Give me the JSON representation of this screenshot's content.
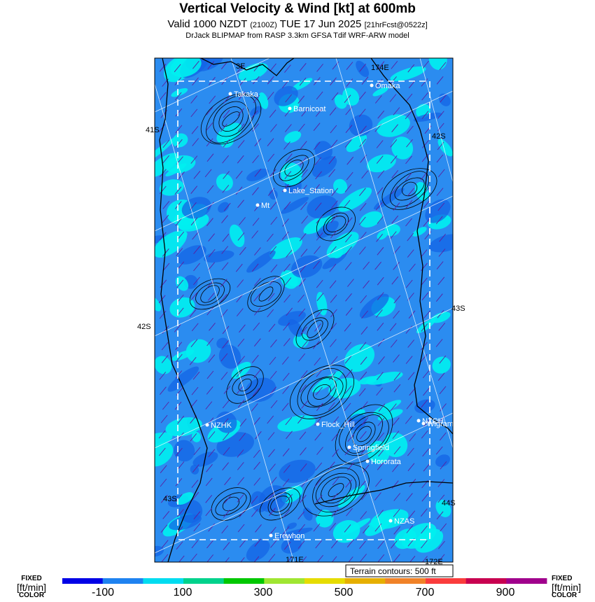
{
  "header": {
    "title": "Vertical Velocity & Wind [kt] at 600mb",
    "valid_prefix": "Valid 1000 NZDT",
    "valid_utc": "(2100Z)",
    "valid_date": "TUE 17 Jun 2025",
    "forecast": "[21hrFcst@0522z]",
    "subtitle": "DrJack BLIPMAP from RASP 3.3km GFSA Tdif WRF-ARW model"
  },
  "map": {
    "background_color": "#2b8cf0",
    "updraft_color": "#00f0f0",
    "downdraft_color": "#1464e6",
    "terrain_note": "Terrain contours: 500 ft",
    "grid_labels": {
      "lon_top_left": "3E",
      "lon_top_right": "174E",
      "lon_bottom_left": "171E",
      "lon_bottom_right": "172E",
      "lat_left_1": "41S",
      "lat_left_2": "42S",
      "lat_left_3": "43S",
      "lat_right_1": "42S",
      "lat_right_2": "43S",
      "lat_right_3": "44S"
    },
    "places": [
      {
        "name": "Takaka"
      },
      {
        "name": "Barnicoat"
      },
      {
        "name": "Omaka"
      },
      {
        "name": "Lake_Station"
      },
      {
        "name": "Mt"
      },
      {
        "name": "NZHK"
      },
      {
        "name": "Flock_Hill"
      },
      {
        "name": "NZCH"
      },
      {
        "name": "Wigram"
      },
      {
        "name": "Springfield"
      },
      {
        "name": "Hororata"
      },
      {
        "name": "NZAS"
      },
      {
        "name": "Erewhon"
      }
    ]
  },
  "colorbar": {
    "left_label": {
      "line1": "FIXED",
      "line2": "[ft/min]",
      "line3": "COLOR"
    },
    "right_label": {
      "line1": "FIXED",
      "line2": "[ft/min]",
      "line3": "COLOR"
    },
    "colors": [
      "#0000e6",
      "#1e82f0",
      "#00dcf0",
      "#00d28c",
      "#00c800",
      "#a0e632",
      "#e6dc00",
      "#e6af00",
      "#f08228",
      "#fa3c3c",
      "#c80050",
      "#a0008c"
    ],
    "ticks": [
      "-100",
      "100",
      "300",
      "500",
      "700",
      "900"
    ]
  }
}
